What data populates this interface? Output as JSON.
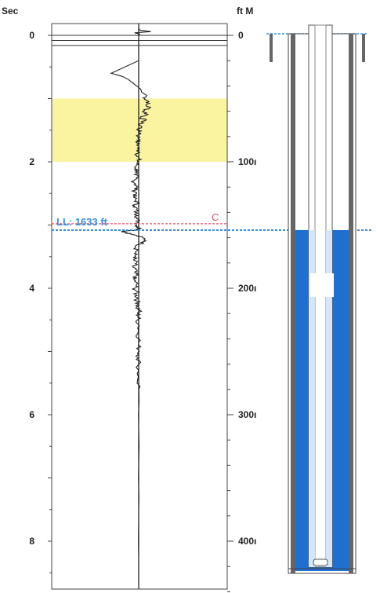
{
  "chart_data": {
    "type": "line",
    "left_axis": {
      "title": "Sec",
      "ticks": [
        0,
        2,
        4,
        6,
        8
      ],
      "range": [
        -0.2,
        8.7
      ]
    },
    "right_axis": {
      "title": "ft M",
      "ticks": [
        0,
        1000,
        2000,
        3000,
        4000
      ],
      "tick_labels": [
        "0",
        "100ı",
        "200ı",
        "300ı",
        "400ı"
      ]
    },
    "highlight_band": {
      "y_range": [
        1.0,
        2.0
      ],
      "color": "#faf3a0"
    },
    "liquid_level": {
      "label": "LL: 1633 ft",
      "time_sec": 3.08,
      "depth_ft": 1633,
      "color": "#3a8fd8"
    },
    "marker": {
      "label": "C",
      "time_sec": 2.98,
      "color": "#e8506a"
    },
    "baseline_x": 0.0,
    "colors": {
      "trace": "#222222",
      "fluid": "#1f6fcf",
      "casing": "#666666"
    },
    "signal": {
      "y_sec": [
        -0.1,
        -0.08,
        -0.06,
        -0.04,
        -0.02,
        0.0,
        0.02,
        0.05,
        0.1,
        0.2,
        0.4,
        0.6,
        0.65,
        0.7,
        0.75,
        0.8,
        0.85,
        0.9,
        0.95,
        1.0,
        1.05,
        1.1,
        1.15,
        1.2,
        1.25,
        1.3,
        1.35,
        1.4,
        1.45,
        1.5,
        1.55,
        1.6,
        1.65,
        1.7,
        1.75,
        1.8,
        1.85,
        1.9,
        1.95,
        2.0,
        2.05,
        2.1,
        2.15,
        2.2,
        2.25,
        2.3,
        2.35,
        2.4,
        2.45,
        2.5,
        2.55,
        2.6,
        2.65,
        2.7,
        2.75,
        2.8,
        2.85,
        2.9,
        2.95,
        3.0,
        3.03,
        3.06,
        3.08,
        3.1,
        3.12,
        3.15,
        3.2,
        3.25,
        3.3,
        3.35,
        3.4,
        3.45,
        3.5,
        3.55,
        3.6,
        3.65,
        3.7,
        3.75,
        3.8,
        3.85,
        3.9,
        3.95,
        4.0,
        4.05,
        4.1,
        4.15,
        4.2,
        4.25,
        4.3,
        4.35,
        4.4,
        4.45,
        4.5,
        4.6,
        4.7,
        4.8,
        4.9,
        5.0,
        5.1,
        5.2,
        5.4,
        5.6,
        5.8,
        6.0,
        6.2,
        6.5,
        6.8,
        7.0,
        7.3,
        7.6,
        8.0,
        8.3,
        8.6
      ],
      "x_amp": [
        0,
        0.1,
        0.6,
        -0.2,
        0.05,
        0,
        0,
        0,
        0,
        0,
        0,
        -1.35,
        -0.8,
        -0.5,
        -0.3,
        -0.1,
        0.1,
        0.15,
        0.4,
        0.3,
        0.5,
        0.35,
        0.55,
        0.2,
        0.45,
        0.1,
        0.3,
        0.05,
        0.15,
        -0.05,
        0.1,
        -0.05,
        0.05,
        -0.1,
        0.0,
        -0.05,
        0.05,
        -0.1,
        0.0,
        -0.05,
        -0.1,
        -0.15,
        -0.05,
        -0.2,
        -0.1,
        -0.25,
        -0.15,
        -0.1,
        -0.2,
        -0.1,
        -0.25,
        -0.15,
        -0.05,
        -0.2,
        -0.1,
        -0.15,
        -0.05,
        -0.1,
        0.0,
        -0.1,
        -0.05,
        0.05,
        -0.05,
        -0.8,
        -0.6,
        -0.3,
        0.2,
        0.35,
        0.1,
        -0.15,
        -0.05,
        -0.2,
        -0.15,
        -0.25,
        -0.1,
        -0.3,
        -0.15,
        -0.2,
        -0.1,
        -0.25,
        -0.15,
        -0.1,
        -0.2,
        -0.1,
        -0.15,
        -0.05,
        -0.1,
        0.0,
        -0.1,
        0.05,
        -0.05,
        0.0,
        -0.05,
        0.03,
        -0.03,
        0.02,
        -0.02,
        0.03,
        -0.02,
        0.01,
        -0.02,
        0.01,
        0.02,
        -0.01,
        0.0,
        0.02,
        0.0,
        -0.01,
        0.01,
        0.0,
        -0.01,
        0.0,
        0.0
      ]
    }
  }
}
